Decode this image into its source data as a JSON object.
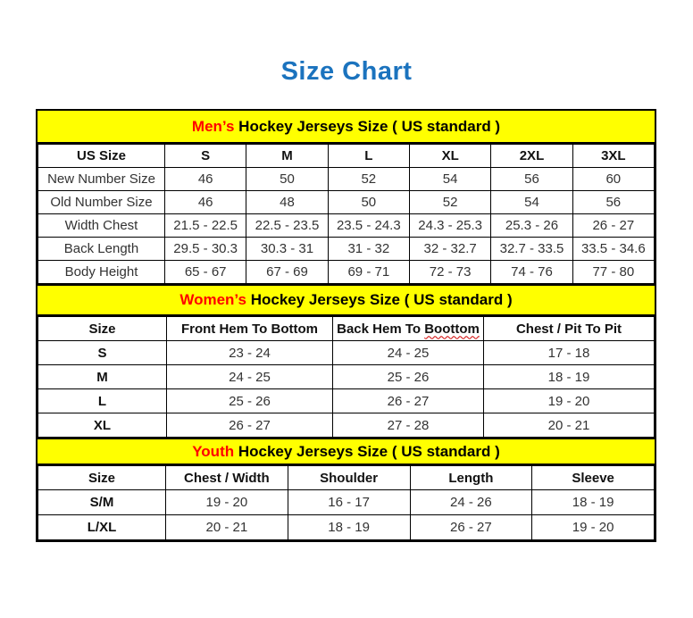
{
  "page_title": "Size Chart",
  "accent_colors": {
    "title_blue": "#1B73BE",
    "band_yellow": "#FFFF00",
    "highlight_red": "#FF0000"
  },
  "sections": [
    {
      "name": "mens",
      "band": {
        "highlight": "Men’s",
        "rest": " Hockey Jerseys Size ( US standard )"
      },
      "columns": [
        "US Size",
        "S",
        "M",
        "L",
        "XL",
        "2XL",
        "3XL"
      ],
      "rows": [
        {
          "label": "New Number Size",
          "values": [
            "46",
            "50",
            "52",
            "54",
            "56",
            "60"
          ]
        },
        {
          "label": "Old Number Size",
          "values": [
            "46",
            "48",
            "50",
            "52",
            "54",
            "56"
          ]
        },
        {
          "label": "Width Chest",
          "values": [
            "21.5 - 22.5",
            "22.5 - 23.5",
            "23.5 - 24.3",
            "24.3 - 25.3",
            "25.3 - 26",
            "26 - 27"
          ]
        },
        {
          "label": "Back Length",
          "values": [
            "29.5 - 30.3",
            "30.3 - 31",
            "31 - 32",
            "32 - 32.7",
            "32.7 - 33.5",
            "33.5 - 34.6"
          ]
        },
        {
          "label": "Body Height",
          "values": [
            "65 - 67",
            "67 - 69",
            "69 - 71",
            "72 - 73",
            "74 - 76",
            "77 - 80"
          ]
        }
      ]
    },
    {
      "name": "womens",
      "band": {
        "highlight": "Women’s",
        "rest": " Hockey Jerseys Size ( US standard )"
      },
      "columns": [
        "Size",
        "Front Hem To Bottom",
        "Back Hem To Boottom",
        "Chest / Pit To Pit"
      ],
      "spellcheck_wavy": {
        "column_index": 2,
        "word": "Boottom"
      },
      "rows": [
        {
          "label": "S",
          "values": [
            "23 - 24",
            "24 - 25",
            "17 - 18"
          ]
        },
        {
          "label": "M",
          "values": [
            "24 - 25",
            "25 - 26",
            "18 - 19"
          ]
        },
        {
          "label": "L",
          "values": [
            "25 - 26",
            "26 - 27",
            "19 - 20"
          ]
        },
        {
          "label": "XL",
          "values": [
            "26 - 27",
            "27 - 28",
            "20 - 21"
          ]
        }
      ]
    },
    {
      "name": "youth",
      "band": {
        "highlight": "Youth",
        "rest": " Hockey Jerseys Size ( US standard )"
      },
      "columns": [
        "Size",
        "Chest / Width",
        "Shoulder",
        "Length",
        "Sleeve"
      ],
      "rows": [
        {
          "label": "S/M",
          "values": [
            "19 - 20",
            "16 - 17",
            "24 - 26",
            "18 - 19"
          ]
        },
        {
          "label": "L/XL",
          "values": [
            "20 - 21",
            "18 - 19",
            "26 - 27",
            "19 - 20"
          ]
        }
      ]
    }
  ]
}
